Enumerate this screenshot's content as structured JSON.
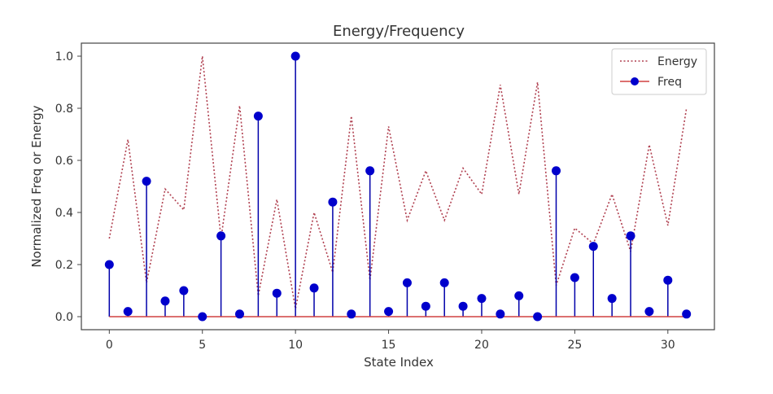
{
  "chart_data": {
    "type": "stem+line",
    "title": "Energy/Frequency",
    "xlabel": "State Index",
    "ylabel": "Normalized Freq or Energy",
    "xlim": [
      -1.5,
      32.5
    ],
    "ylim": [
      -0.05,
      1.05
    ],
    "xticks": [
      0,
      5,
      10,
      15,
      20,
      25,
      30
    ],
    "yticks": [
      0.0,
      0.2,
      0.4,
      0.6,
      0.8,
      1.0
    ],
    "xtick_labels": [
      "0",
      "5",
      "10",
      "15",
      "20",
      "25",
      "30"
    ],
    "ytick_labels": [
      "0.0",
      "0.2",
      "0.4",
      "0.6",
      "0.8",
      "1.0"
    ],
    "legend_position": "top-right",
    "x": [
      0,
      1,
      2,
      3,
      4,
      5,
      6,
      7,
      8,
      9,
      10,
      11,
      12,
      13,
      14,
      15,
      16,
      17,
      18,
      19,
      20,
      21,
      22,
      23,
      24,
      25,
      26,
      27,
      28,
      29,
      30,
      31
    ],
    "series": [
      {
        "name": "Energy",
        "kind": "line",
        "style": "dotted",
        "color": "#b04050",
        "values": [
          0.3,
          0.68,
          0.13,
          0.49,
          0.41,
          1.0,
          0.3,
          0.81,
          0.08,
          0.45,
          0.03,
          0.4,
          0.17,
          0.77,
          0.14,
          0.73,
          0.37,
          0.56,
          0.37,
          0.57,
          0.47,
          0.89,
          0.47,
          0.9,
          0.12,
          0.34,
          0.28,
          0.47,
          0.25,
          0.66,
          0.35,
          0.8
        ]
      },
      {
        "name": "Freq",
        "kind": "stem",
        "color": "#0000cc",
        "stem_color": "#0000aa",
        "baseline_color": "#d04040",
        "values": [
          0.2,
          0.02,
          0.52,
          0.06,
          0.1,
          0.0,
          0.31,
          0.01,
          0.77,
          0.09,
          1.0,
          0.11,
          0.44,
          0.01,
          0.56,
          0.02,
          0.13,
          0.04,
          0.13,
          0.04,
          0.07,
          0.01,
          0.08,
          0.0,
          0.56,
          0.15,
          0.27,
          0.07,
          0.31,
          0.02,
          0.14,
          0.01
        ]
      }
    ]
  }
}
